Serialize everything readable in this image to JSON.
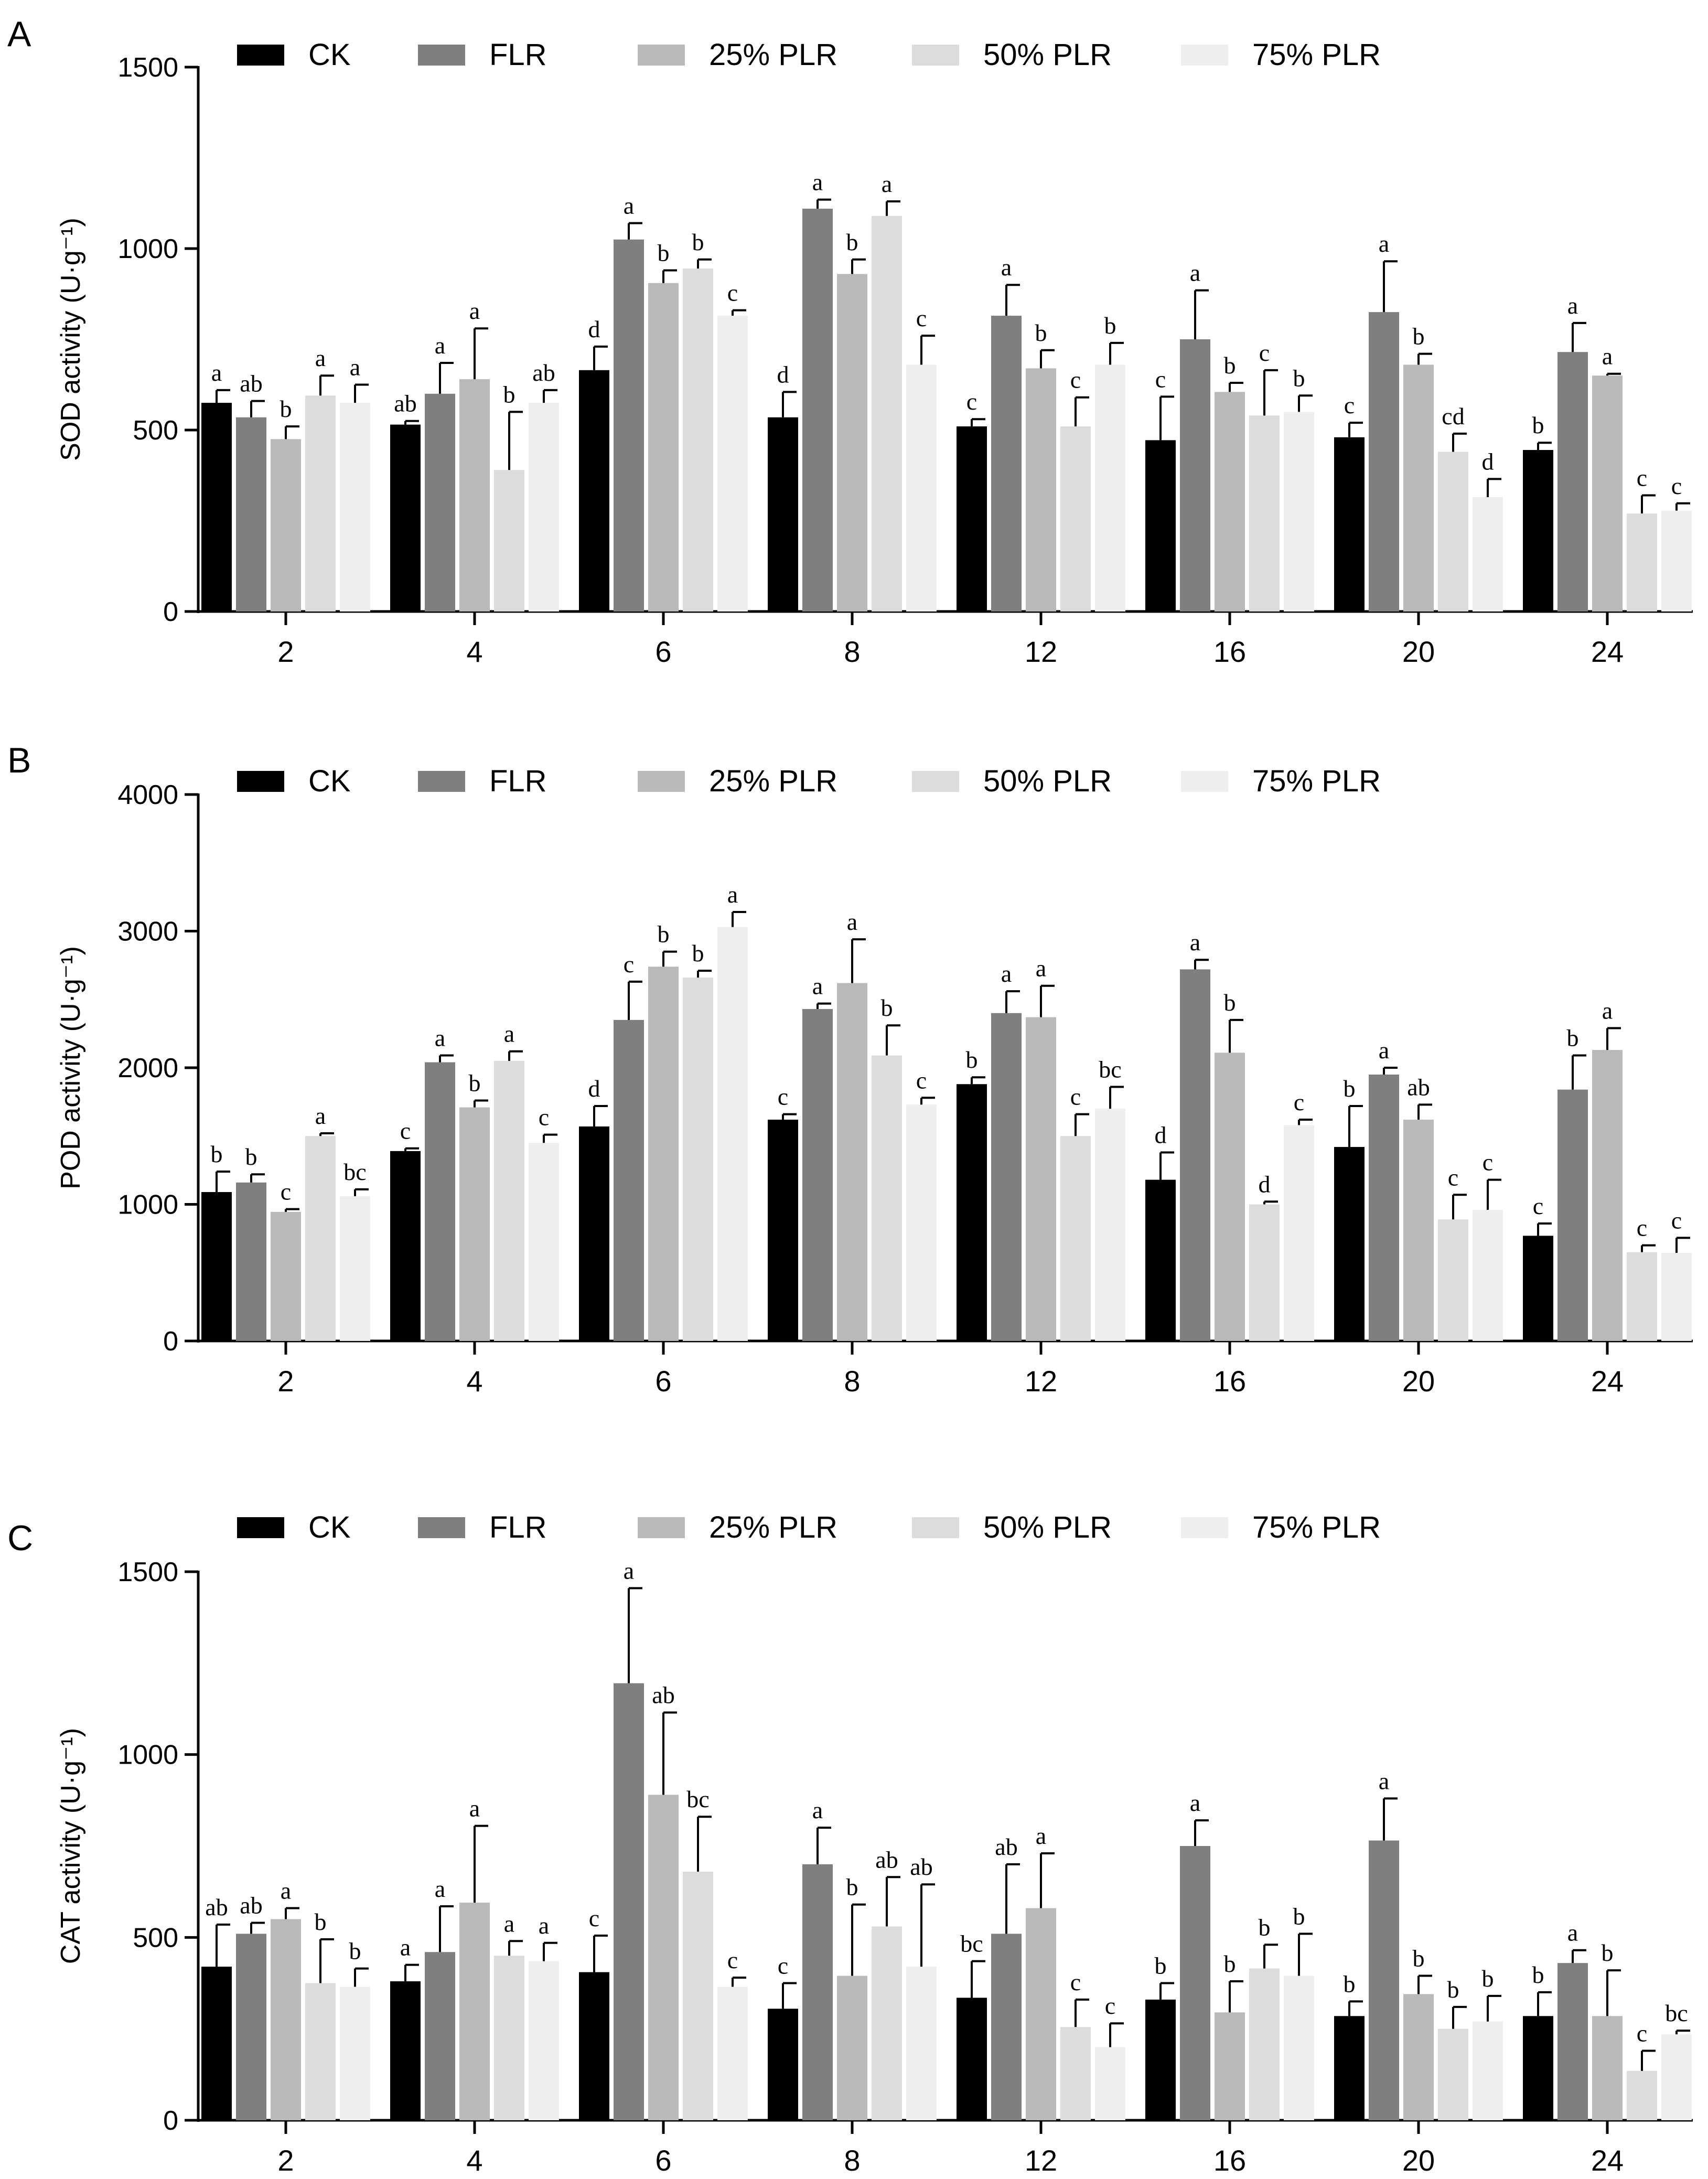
{
  "legend": [
    "CK",
    "FLR",
    "25% PLR",
    "50% PLR",
    "75% PLR"
  ],
  "colors": [
    "#000000",
    "#7f7f7f",
    "#b9b9b9",
    "#dcdcdc",
    "#eeeeee"
  ],
  "chart_data": [
    {
      "type": "bar",
      "panel_label": "A",
      "ylabel": "SOD activity (U·g⁻¹)",
      "ylim": [
        0,
        1500
      ],
      "yticks": [
        0,
        500,
        1000,
        1500
      ],
      "categories": [
        "2",
        "4",
        "6",
        "8",
        "12",
        "16",
        "20",
        "24"
      ],
      "series": [
        {
          "name": "CK",
          "values": [
            575,
            515,
            665,
            535,
            510,
            472,
            480,
            445
          ],
          "errors": [
            35,
            10,
            65,
            70,
            20,
            120,
            40,
            20
          ],
          "letters": [
            "a",
            "ab",
            "d",
            "d",
            "c",
            "c",
            "c",
            "b"
          ]
        },
        {
          "name": "FLR",
          "values": [
            535,
            600,
            1025,
            1110,
            815,
            750,
            825,
            715
          ],
          "errors": [
            45,
            85,
            45,
            25,
            85,
            135,
            140,
            80
          ],
          "letters": [
            "ab",
            "a",
            "a",
            "a",
            "a",
            "a",
            "a",
            "a"
          ]
        },
        {
          "name": "25% PLR",
          "values": [
            475,
            640,
            905,
            930,
            670,
            605,
            680,
            650
          ],
          "errors": [
            35,
            140,
            35,
            40,
            50,
            25,
            30,
            5
          ],
          "letters": [
            "b",
            "a",
            "b",
            "b",
            "b",
            "b",
            "b",
            "a"
          ]
        },
        {
          "name": "50% PLR",
          "values": [
            595,
            390,
            945,
            1090,
            510,
            540,
            440,
            270
          ],
          "errors": [
            55,
            160,
            25,
            40,
            80,
            125,
            50,
            50
          ],
          "letters": [
            "a",
            "b",
            "b",
            "a",
            "c",
            "c",
            "cd",
            "c"
          ]
        },
        {
          "name": "75% PLR",
          "values": [
            575,
            575,
            815,
            680,
            680,
            550,
            315,
            278
          ],
          "errors": [
            50,
            35,
            15,
            80,
            60,
            45,
            50,
            20
          ],
          "letters": [
            "a",
            "ab",
            "c",
            "c",
            "b",
            "b",
            "d",
            "c"
          ]
        }
      ]
    },
    {
      "type": "bar",
      "panel_label": "B",
      "ylabel": "POD activity (U·g⁻¹)",
      "ylim": [
        0,
        4000
      ],
      "yticks": [
        0,
        1000,
        2000,
        3000,
        4000
      ],
      "categories": [
        "2",
        "4",
        "6",
        "8",
        "12",
        "16",
        "20",
        "24"
      ],
      "series": [
        {
          "name": "CK",
          "values": [
            1090,
            1390,
            1570,
            1620,
            1880,
            1180,
            1420,
            770
          ],
          "errors": [
            150,
            20,
            150,
            40,
            50,
            200,
            300,
            90
          ],
          "letters": [
            "b",
            "c",
            "d",
            "c",
            "b",
            "d",
            "b",
            "c"
          ]
        },
        {
          "name": "FLR",
          "values": [
            1160,
            2040,
            2350,
            2430,
            2400,
            2720,
            1950,
            1840
          ],
          "errors": [
            60,
            50,
            280,
            40,
            160,
            70,
            50,
            250
          ],
          "letters": [
            "b",
            "a",
            "c",
            "a",
            "a",
            "a",
            "a",
            "b"
          ]
        },
        {
          "name": "25% PLR",
          "values": [
            945,
            1710,
            2740,
            2620,
            2370,
            2110,
            1620,
            2130
          ],
          "errors": [
            20,
            50,
            110,
            320,
            230,
            240,
            110,
            160
          ],
          "letters": [
            "c",
            "b",
            "b",
            "a",
            "a",
            "b",
            "ab",
            "a"
          ]
        },
        {
          "name": "50% PLR",
          "values": [
            1500,
            2050,
            2660,
            2090,
            1500,
            1000,
            890,
            650
          ],
          "errors": [
            20,
            70,
            50,
            220,
            160,
            20,
            180,
            50
          ],
          "letters": [
            "a",
            "a",
            "b",
            "b",
            "c",
            "d",
            "c",
            "c"
          ]
        },
        {
          "name": "75% PLR",
          "values": [
            1060,
            1450,
            3030,
            1730,
            1700,
            1580,
            960,
            645
          ],
          "errors": [
            50,
            60,
            110,
            50,
            160,
            40,
            220,
            110
          ],
          "letters": [
            "bc",
            "c",
            "a",
            "c",
            "bc",
            "c",
            "c",
            "c"
          ]
        }
      ]
    },
    {
      "type": "bar",
      "panel_label": "C",
      "ylabel": "CAT activity (U·g⁻¹)",
      "ylim": [
        0,
        1500
      ],
      "yticks": [
        0,
        500,
        1000,
        1500
      ],
      "categories": [
        "2",
        "4",
        "6",
        "8",
        "12",
        "16",
        "20",
        "24"
      ],
      "series": [
        {
          "name": "CK",
          "values": [
            420,
            380,
            405,
            305,
            335,
            330,
            285,
            285
          ],
          "errors": [
            115,
            45,
            100,
            70,
            100,
            45,
            40,
            65
          ],
          "letters": [
            "ab",
            "a",
            "c",
            "c",
            "bc",
            "b",
            "b",
            "b"
          ]
        },
        {
          "name": "FLR",
          "values": [
            510,
            460,
            1195,
            700,
            510,
            750,
            765,
            430
          ],
          "errors": [
            30,
            125,
            260,
            100,
            190,
            70,
            115,
            35
          ],
          "letters": [
            "ab",
            "a",
            "a",
            "a",
            "ab",
            "a",
            "a",
            "a"
          ]
        },
        {
          "name": "25% PLR",
          "values": [
            550,
            595,
            890,
            395,
            580,
            295,
            345,
            285
          ],
          "errors": [
            30,
            210,
            225,
            195,
            150,
            85,
            50,
            125
          ],
          "letters": [
            "a",
            "a",
            "ab",
            "b",
            "a",
            "b",
            "b",
            "b"
          ]
        },
        {
          "name": "50% PLR",
          "values": [
            375,
            450,
            680,
            530,
            255,
            415,
            250,
            135
          ],
          "errors": [
            120,
            40,
            150,
            135,
            75,
            65,
            60,
            55
          ],
          "letters": [
            "b",
            "a",
            "bc",
            "ab",
            "c",
            "b",
            "b",
            "c"
          ]
        },
        {
          "name": "75% PLR",
          "values": [
            365,
            435,
            365,
            420,
            200,
            395,
            270,
            235
          ],
          "errors": [
            50,
            50,
            25,
            225,
            65,
            115,
            70,
            10
          ],
          "letters": [
            "b",
            "a",
            "c",
            "ab",
            "c",
            "b",
            "b",
            "bc"
          ]
        }
      ]
    }
  ]
}
